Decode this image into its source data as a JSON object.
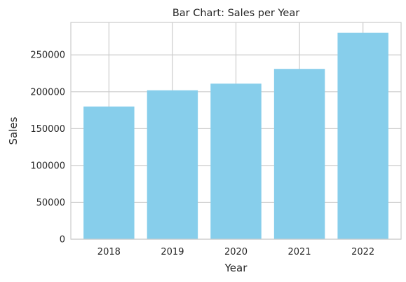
{
  "chart_data": {
    "type": "bar",
    "title": "Bar Chart: Sales per Year",
    "xlabel": "Year",
    "ylabel": "Sales",
    "categories": [
      "2018",
      "2019",
      "2020",
      "2021",
      "2022"
    ],
    "values": [
      180000,
      202000,
      211000,
      231000,
      280000
    ],
    "ylim": [
      0,
      294000
    ],
    "yticks": [
      0,
      50000,
      100000,
      150000,
      200000,
      250000
    ],
    "ytick_labels": [
      "0",
      "50000",
      "100000",
      "150000",
      "200000",
      "250000"
    ],
    "grid": true,
    "bar_color": "#87CEEB",
    "grid_color": "#cccccc",
    "background": "#ffffff"
  }
}
